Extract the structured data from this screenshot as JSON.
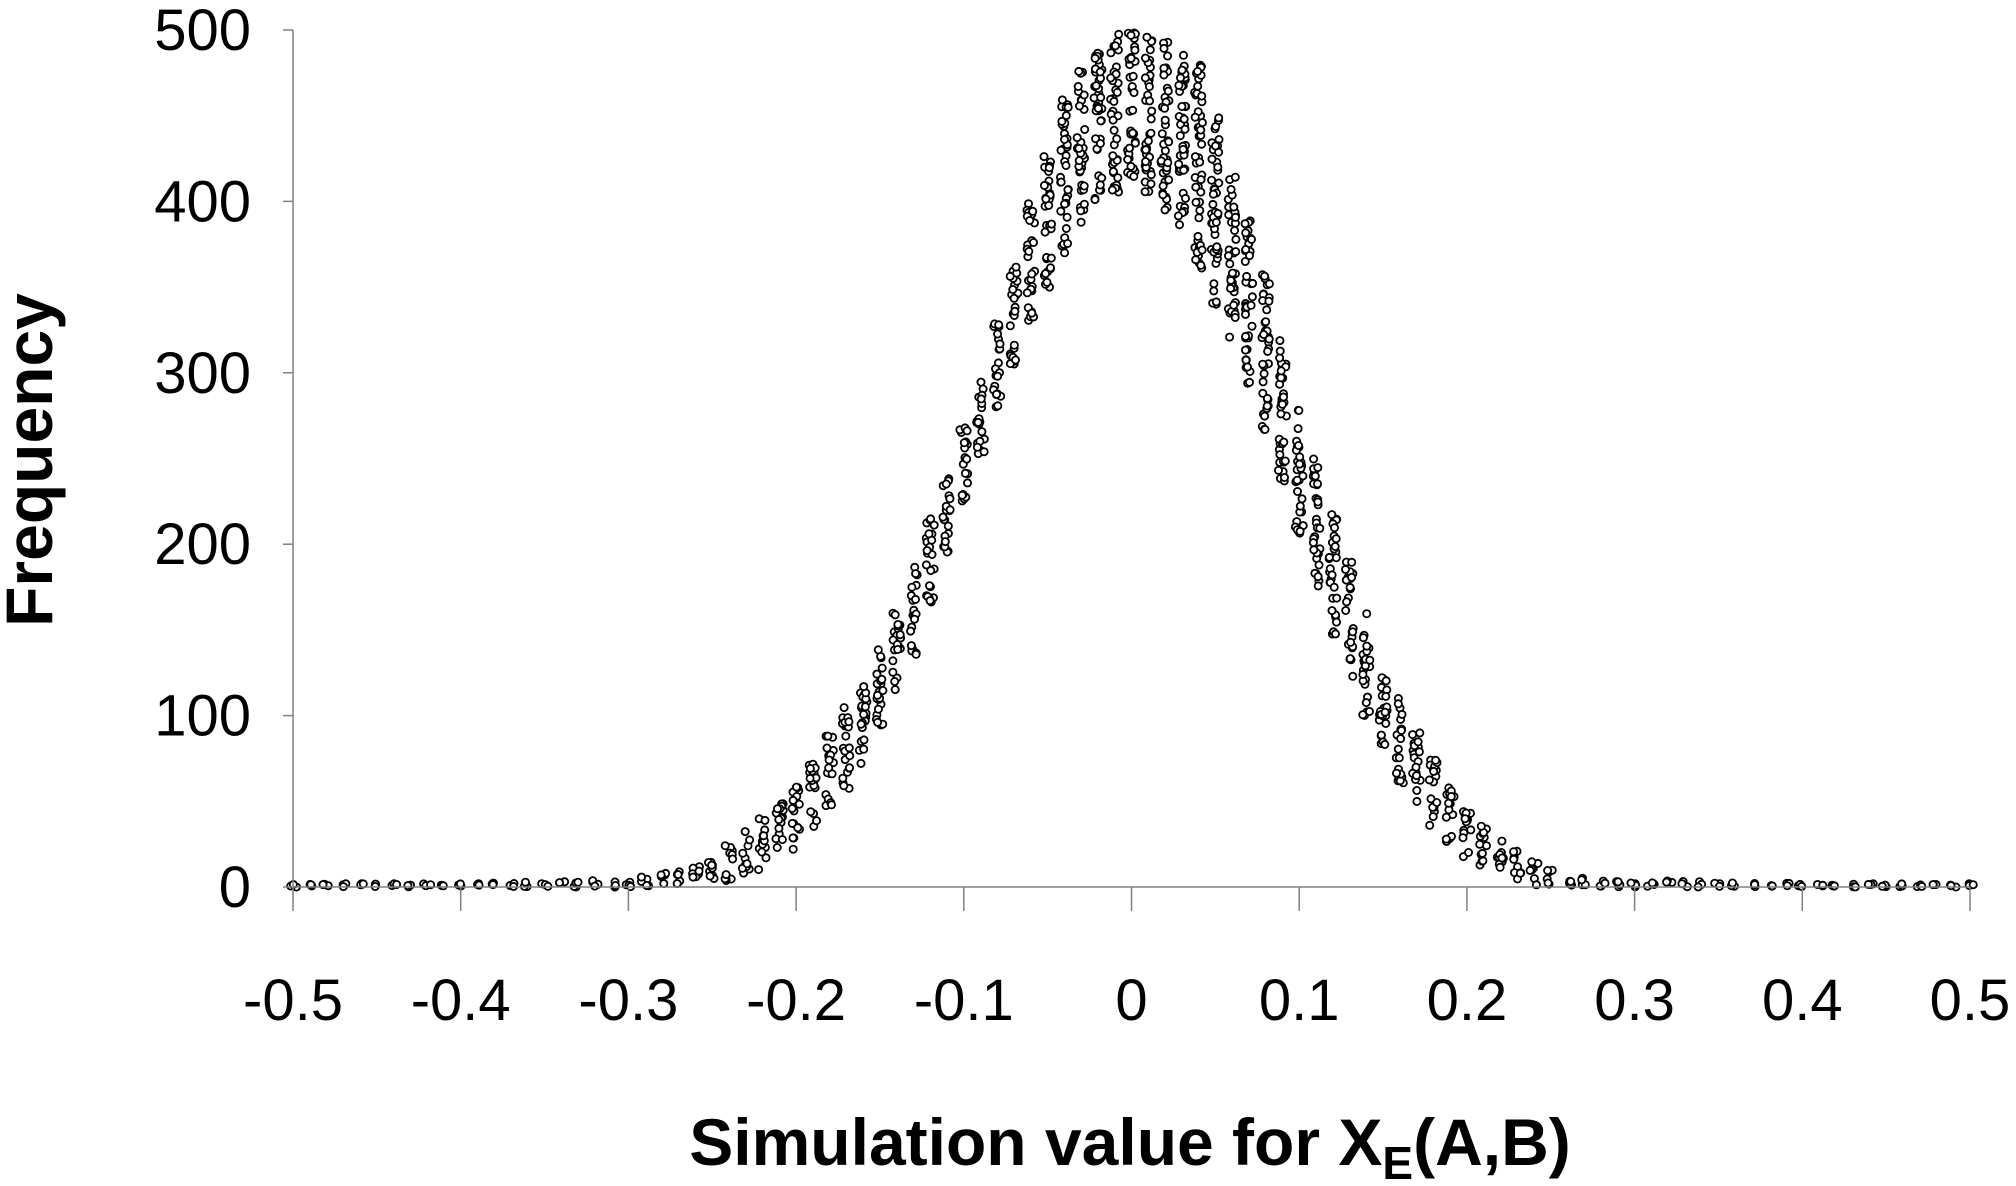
{
  "chart_data": {
    "type": "scatter",
    "title": "",
    "xlabel": "Simulation value for X",
    "xlabel_subscript": "E",
    "xlabel_suffix": "(A,B)",
    "ylabel": "Frequency",
    "xlim": [
      -0.5,
      0.5
    ],
    "ylim": [
      0,
      500
    ],
    "xticks": [
      "-0.5",
      "-0.4",
      "-0.3",
      "-0.2",
      "-0.1",
      "0",
      "0.1",
      "0.2",
      "0.3",
      "0.4",
      "0.5"
    ],
    "yticks": [
      "0",
      "100",
      "200",
      "300",
      "400",
      "500"
    ],
    "grid": false,
    "legend": "none",
    "marker": "open-circle",
    "bin_width": 0.01,
    "envelope": {
      "x": [
        -0.5,
        -0.45,
        -0.4,
        -0.35,
        -0.3,
        -0.28,
        -0.26,
        -0.24,
        -0.22,
        -0.2,
        -0.18,
        -0.16,
        -0.14,
        -0.12,
        -0.1,
        -0.08,
        -0.06,
        -0.04,
        -0.02,
        0.0,
        0.02,
        0.04,
        0.06,
        0.08,
        0.1,
        0.12,
        0.14,
        0.16,
        0.18,
        0.2,
        0.22,
        0.24,
        0.26,
        0.28,
        0.3,
        0.35,
        0.4,
        0.45,
        0.5
      ],
      "low": [
        0,
        0,
        0,
        0,
        0,
        0,
        0,
        3,
        10,
        22,
        45,
        70,
        110,
        160,
        225,
        280,
        330,
        370,
        400,
        410,
        395,
        360,
        320,
        265,
        205,
        145,
        100,
        60,
        35,
        15,
        5,
        1,
        0,
        0,
        0,
        0,
        0,
        0,
        0
      ],
      "high": [
        2,
        2,
        2,
        3,
        5,
        8,
        12,
        25,
        40,
        60,
        90,
        120,
        160,
        215,
        270,
        330,
        400,
        460,
        495,
        500,
        495,
        480,
        420,
        360,
        280,
        220,
        160,
        110,
        75,
        45,
        28,
        15,
        8,
        5,
        4,
        3,
        2,
        2,
        2
      ]
    },
    "colors": {
      "marker_stroke": "#000000",
      "marker_fill": "#ffffff",
      "axis": "#808080"
    }
  }
}
